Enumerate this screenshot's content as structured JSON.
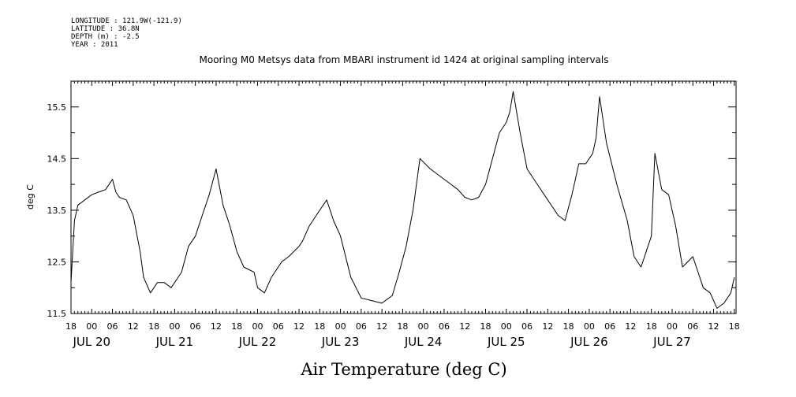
{
  "metadata": {
    "longitude": "LONGITUDE : 121.9W(-121.9)",
    "latitude": "LATITUDE : 36.8N",
    "depth": "DEPTH (m) : -2.5",
    "year": "YEAR : 2011"
  },
  "chart_data": {
    "type": "line",
    "title": "Mooring M0 Metsys data from MBARI instrument id 1424 at original sampling intervals",
    "xlabel": "Air Temperature (deg C)",
    "ylabel": "deg C",
    "ylim": [
      11.5,
      16.0
    ],
    "yticks": [
      11.5,
      12.5,
      13.5,
      14.5,
      15.5
    ],
    "ytick_labels": [
      "11.5",
      "12.5",
      "13.5",
      "14.5",
      "15.5"
    ],
    "xlim": [
      "2011-07-19T18:00",
      "2011-07-27T18:30"
    ],
    "x_hour_ticks": [
      "18",
      "00",
      "06",
      "12",
      "18",
      "00",
      "06",
      "12",
      "18",
      "00",
      "06",
      "12",
      "18",
      "00",
      "06",
      "12",
      "18",
      "00",
      "06",
      "12",
      "18",
      "00",
      "06",
      "12",
      "18",
      "00",
      "06",
      "12",
      "18",
      "00",
      "06",
      "12",
      "18"
    ],
    "x_day_labels": [
      "JUL 20",
      "JUL 21",
      "JUL 22",
      "JUL 23",
      "JUL 24",
      "JUL 25",
      "JUL 26",
      "JUL 27"
    ],
    "grid": false,
    "series": [
      {
        "x": [
          "2011-07-19T18:00",
          "2011-07-19T19:00",
          "2011-07-19T20:00",
          "2011-07-19T22:00",
          "2011-07-20T00:00",
          "2011-07-20T02:00",
          "2011-07-20T04:00",
          "2011-07-20T06:00",
          "2011-07-20T07:00",
          "2011-07-20T08:00",
          "2011-07-20T10:00",
          "2011-07-20T12:00",
          "2011-07-20T14:00",
          "2011-07-20T15:00",
          "2011-07-20T17:00",
          "2011-07-20T19:00",
          "2011-07-20T21:00",
          "2011-07-20T23:00",
          "2011-07-21T02:00",
          "2011-07-21T04:00",
          "2011-07-21T06:00",
          "2011-07-21T08:00",
          "2011-07-21T10:00",
          "2011-07-21T12:00",
          "2011-07-21T14:00",
          "2011-07-21T16:00",
          "2011-07-21T18:00",
          "2011-07-21T20:00",
          "2011-07-21T23:00",
          "2011-07-22T00:00",
          "2011-07-22T02:00",
          "2011-07-22T04:00",
          "2011-07-22T07:00",
          "2011-07-22T09:00",
          "2011-07-22T12:00",
          "2011-07-22T13:00",
          "2011-07-22T15:00",
          "2011-07-22T18:00",
          "2011-07-22T20:00",
          "2011-07-22T22:00",
          "2011-07-23T00:00",
          "2011-07-23T03:00",
          "2011-07-23T06:00",
          "2011-07-23T09:00",
          "2011-07-23T12:00",
          "2011-07-23T15:00",
          "2011-07-23T17:00",
          "2011-07-23T19:00",
          "2011-07-23T21:00",
          "2011-07-23T23:00",
          "2011-07-24T02:00",
          "2011-07-24T04:00",
          "2011-07-24T06:00",
          "2011-07-24T08:00",
          "2011-07-24T10:00",
          "2011-07-24T12:00",
          "2011-07-24T14:00",
          "2011-07-24T16:00",
          "2011-07-24T18:00",
          "2011-07-24T20:00",
          "2011-07-24T22:00",
          "2011-07-25T00:00",
          "2011-07-25T01:00",
          "2011-07-25T02:00",
          "2011-07-25T04:00",
          "2011-07-25T06:00",
          "2011-07-25T09:00",
          "2011-07-25T12:00",
          "2011-07-25T15:00",
          "2011-07-25T17:00",
          "2011-07-25T19:00",
          "2011-07-25T21:00",
          "2011-07-25T23:00",
          "2011-07-26T01:00",
          "2011-07-26T02:00",
          "2011-07-26T03:00",
          "2011-07-26T05:00",
          "2011-07-26T08:00",
          "2011-07-26T11:00",
          "2011-07-26T13:00",
          "2011-07-26T15:00",
          "2011-07-26T17:00",
          "2011-07-26T18:00",
          "2011-07-26T19:00",
          "2011-07-26T21:00",
          "2011-07-26T23:00",
          "2011-07-27T01:00",
          "2011-07-27T03:00",
          "2011-07-27T06:00",
          "2011-07-27T09:00",
          "2011-07-27T11:00",
          "2011-07-27T13:00",
          "2011-07-27T15:00",
          "2011-07-27T17:00",
          "2011-07-27T18:00"
        ],
        "y": [
          12.1,
          13.3,
          13.6,
          13.7,
          13.8,
          13.85,
          13.9,
          14.1,
          13.85,
          13.75,
          13.7,
          13.4,
          12.7,
          12.2,
          11.9,
          12.1,
          12.1,
          12.0,
          12.3,
          12.8,
          13.0,
          13.4,
          13.8,
          14.3,
          13.6,
          13.2,
          12.7,
          12.4,
          12.3,
          12.0,
          11.9,
          12.2,
          12.5,
          12.6,
          12.8,
          12.9,
          13.2,
          13.5,
          13.7,
          13.3,
          13.0,
          12.2,
          11.8,
          11.75,
          11.7,
          11.85,
          12.3,
          12.8,
          13.5,
          14.5,
          14.3,
          14.2,
          14.1,
          14.0,
          13.9,
          13.75,
          13.7,
          13.75,
          14.0,
          14.5,
          15.0,
          15.2,
          15.4,
          15.8,
          15.0,
          14.3,
          14.0,
          13.7,
          13.4,
          13.3,
          13.8,
          14.4,
          14.4,
          14.6,
          14.9,
          15.7,
          14.8,
          14.0,
          13.3,
          12.6,
          12.4,
          12.8,
          13.0,
          14.6,
          13.9,
          13.8,
          13.2,
          12.4,
          12.6,
          12.0,
          11.9,
          11.6,
          11.7,
          11.9,
          12.2
        ]
      }
    ]
  }
}
